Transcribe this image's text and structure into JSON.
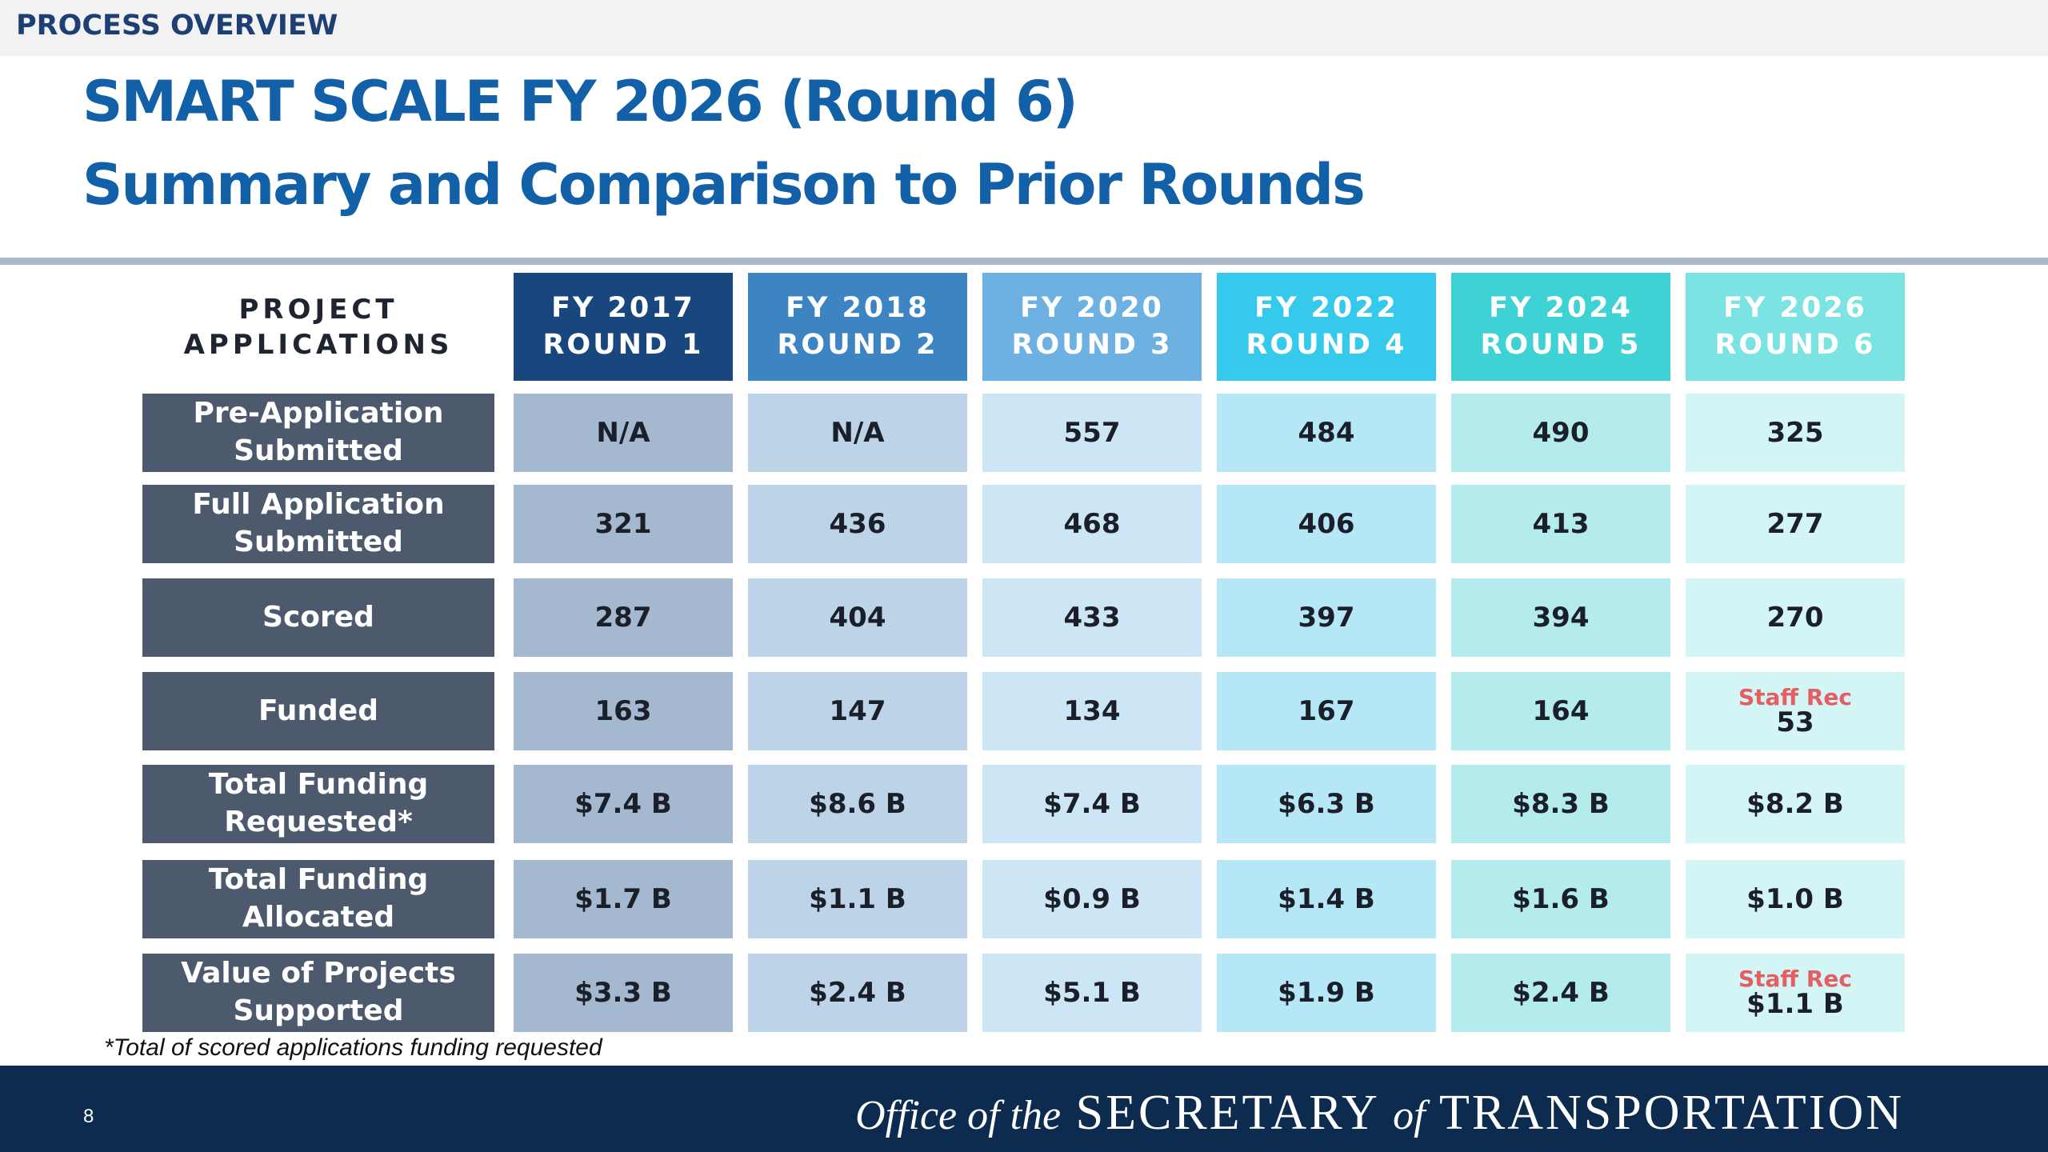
{
  "header": {
    "section_label": "PROCESS OVERVIEW",
    "title": "SMART SCALE FY 2026 (Round 6)",
    "subtitle": "Summary and Comparison to Prior Rounds"
  },
  "table": {
    "corner_header": "PROJECT APPLICATIONS",
    "columns": [
      {
        "line1": "FY 2017",
        "line2": "ROUND 1",
        "head_color": "#17477c",
        "cell_color": "#a4b8cf"
      },
      {
        "line1": "FY 2018",
        "line2": "ROUND 2",
        "head_color": "#3c84c2",
        "cell_color": "#bdd4e8"
      },
      {
        "line1": "FY 2020",
        "line2": "ROUND 3",
        "head_color": "#6cb1e1",
        "cell_color": "#cde6f6"
      },
      {
        "line1": "FY 2022",
        "line2": "ROUND 4",
        "head_color": "#35c9ec",
        "cell_color": "#b6e7f7"
      },
      {
        "line1": "FY 2024",
        "line2": "ROUND 5",
        "head_color": "#3fd2d5",
        "cell_color": "#b4eced"
      },
      {
        "line1": "FY 2026",
        "line2": "ROUND 6",
        "head_color": "#7ce3e3",
        "cell_color": "#d4f5f5"
      }
    ],
    "rows": [
      {
        "label": "Pre-Application Submitted",
        "values": [
          "N/A",
          "N/A",
          "557",
          "484",
          "490",
          "325"
        ],
        "note": ""
      },
      {
        "label": "Full Application Submitted",
        "values": [
          "321",
          "436",
          "468",
          "406",
          "413",
          "277"
        ],
        "note": ""
      },
      {
        "label": "Scored",
        "values": [
          "287",
          "404",
          "433",
          "397",
          "394",
          "270"
        ],
        "note": ""
      },
      {
        "label": "Funded",
        "values": [
          "163",
          "147",
          "134",
          "167",
          "164",
          "53"
        ],
        "note": "Staff Rec"
      },
      {
        "label": "Total Funding Requested*",
        "values": [
          "$7.4 B",
          "$8.6 B",
          "$7.4 B",
          "$6.3 B",
          "$8.3 B",
          "$8.2 B"
        ],
        "note": ""
      },
      {
        "label": "Total Funding Allocated",
        "values": [
          "$1.7 B",
          "$1.1 B",
          "$0.9 B",
          "$1.4 B",
          "$1.6 B",
          "$1.0 B"
        ],
        "note": ""
      },
      {
        "label": "Value of Projects Supported",
        "values": [
          "$3.3 B",
          "$2.4 B",
          "$5.1 B",
          "$1.9 B",
          "$2.4 B",
          "$1.1 B"
        ],
        "note": "Staff Rec"
      }
    ]
  },
  "footnote": "*Total of scored applications funding requested",
  "footer": {
    "page_number": "8",
    "office_prefix": "Office of the",
    "office_main1": "SECRETARY",
    "office_of": "of",
    "office_main2": "TRANSPORTATION"
  },
  "colors": {
    "title_blue": "#1261a8",
    "row_header": "#4d5a6d",
    "footer_navy": "#0c2b4e",
    "staff_rec_red": "#e45e62"
  }
}
